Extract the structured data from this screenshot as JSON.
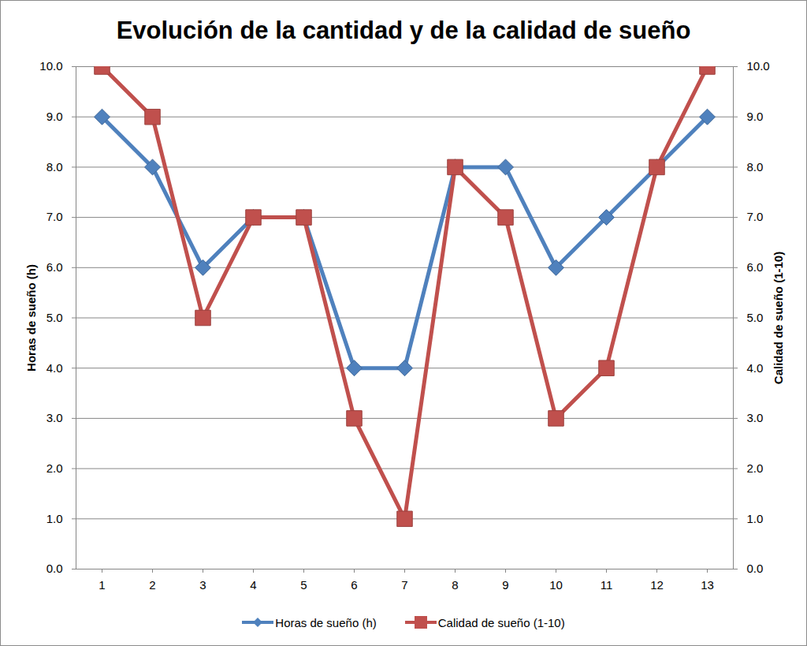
{
  "chart_data": {
    "type": "line",
    "title": "Evolución de la cantidad y de la calidad de sueño",
    "categories": [
      "1",
      "2",
      "3",
      "4",
      "5",
      "6",
      "7",
      "8",
      "9",
      "10",
      "11",
      "12",
      "13"
    ],
    "ylabel": "Horas de sueño (h)",
    "y2label": "Calidad de sueño (1-10)",
    "ylim": [
      0,
      10
    ],
    "yticks": [
      0,
      1,
      2,
      3,
      4,
      5,
      6,
      7,
      8,
      9,
      10
    ],
    "y2lim": [
      0,
      10
    ],
    "y2ticks": [
      0,
      1,
      2,
      3,
      4,
      5,
      6,
      7,
      8,
      9,
      10
    ],
    "grid": true,
    "legend": "bottom",
    "series": [
      {
        "name": "Horas de sueño (h)",
        "color": "#4f81bd",
        "marker": "diamond",
        "values": [
          9,
          8,
          6,
          7,
          7,
          4,
          4,
          8,
          8,
          6,
          7,
          8,
          9
        ]
      },
      {
        "name": "Calidad de sueño (1-10)",
        "color": "#c0504d",
        "marker": "square",
        "axis": "y2",
        "values": [
          10,
          9,
          5,
          7,
          7,
          3,
          1,
          8,
          7,
          3,
          4,
          8,
          10
        ]
      }
    ]
  }
}
